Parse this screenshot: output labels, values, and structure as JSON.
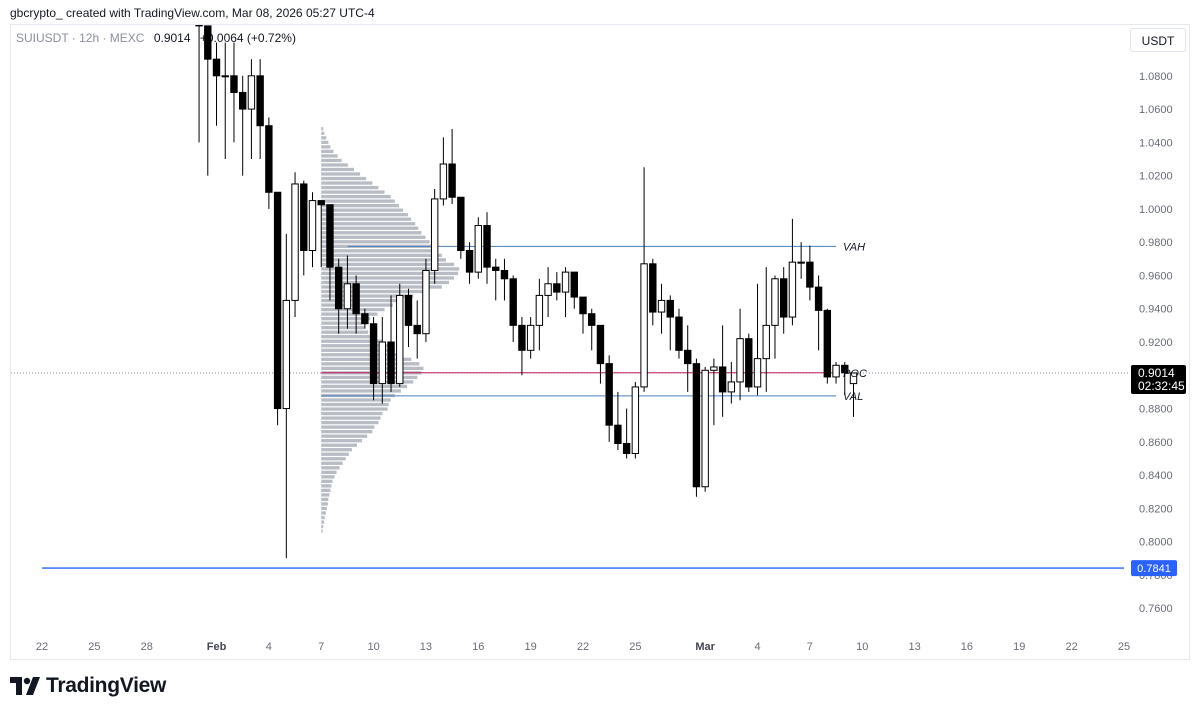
{
  "caption": "gbcrypto_ created with TradingView.com, Mar 08, 2026 05:27 UTC-4",
  "symbol": {
    "label": "SUIUSDT · 12h · MEXC",
    "price": "0.9014",
    "change": "+0.0064 (+0.72%)"
  },
  "currency": "USDT",
  "logo_text": "TradingView",
  "colors": {
    "bull": "#ffffff",
    "bear": "#000000",
    "line": "#2962ff",
    "level": "#4a7fc1",
    "poc": "#c2185b",
    "profile": "#b8bcc4"
  },
  "chart_data": {
    "type": "candlestick",
    "y_axis": {
      "ylim": [
        0.7475,
        1.0895
      ],
      "ticks": [
        "1.0800",
        "1.0600",
        "1.0400",
        "1.0200",
        "1.0000",
        "0.9800",
        "0.9600",
        "0.9400",
        "0.9200",
        "0.9000",
        "0.8800",
        "0.8600",
        "0.8400",
        "0.8200",
        "0.8000",
        "0.7800",
        "0.7600"
      ]
    },
    "x_axis": {
      "start": "2026-01-22",
      "end": "2026-03-25",
      "ticks": [
        {
          "date": "2026-01-22",
          "label": "22"
        },
        {
          "date": "2026-01-25",
          "label": "25"
        },
        {
          "date": "2026-01-28",
          "label": "28"
        },
        {
          "date": "2026-02-01",
          "label": "Feb"
        },
        {
          "date": "2026-02-04",
          "label": "4"
        },
        {
          "date": "2026-02-07",
          "label": "7"
        },
        {
          "date": "2026-02-10",
          "label": "10"
        },
        {
          "date": "2026-02-13",
          "label": "13"
        },
        {
          "date": "2026-02-16",
          "label": "16"
        },
        {
          "date": "2026-02-19",
          "label": "19"
        },
        {
          "date": "2026-02-22",
          "label": "22"
        },
        {
          "date": "2026-02-25",
          "label": "25"
        },
        {
          "date": "2026-03-01",
          "label": "Mar"
        },
        {
          "date": "2026-03-04",
          "label": "4"
        },
        {
          "date": "2026-03-07",
          "label": "7"
        },
        {
          "date": "2026-03-10",
          "label": "10"
        },
        {
          "date": "2026-03-13",
          "label": "13"
        },
        {
          "date": "2026-03-16",
          "label": "16"
        },
        {
          "date": "2026-03-19",
          "label": "19"
        },
        {
          "date": "2026-03-22",
          "label": "22"
        },
        {
          "date": "2026-03-25",
          "label": "25"
        }
      ]
    },
    "candles_start": "2026-01-31T00:00",
    "candle_interval_hours": 12,
    "candles": [
      [
        1.12,
        1.11,
        1.12,
        1.04
      ],
      [
        1.11,
        1.09,
        1.11,
        1.02
      ],
      [
        1.09,
        1.08,
        1.1,
        1.05
      ],
      [
        1.08,
        1.08,
        1.1,
        1.03
      ],
      [
        1.08,
        1.07,
        1.1,
        1.04
      ],
      [
        1.07,
        1.06,
        1.08,
        1.02
      ],
      [
        1.06,
        1.08,
        1.09,
        1.03
      ],
      [
        1.08,
        1.05,
        1.09,
        1.03
      ],
      [
        1.05,
        1.01,
        1.055,
        1.0
      ],
      [
        1.01,
        0.88,
        1.01,
        0.87
      ],
      [
        0.88,
        0.945,
        0.985,
        0.79
      ],
      [
        0.945,
        1.015,
        1.022,
        0.935
      ],
      [
        1.015,
        0.975,
        1.017,
        0.96
      ],
      [
        0.975,
        1.005,
        1.01,
        0.965
      ],
      [
        1.005,
        1.0025,
        1.005,
        0.965
      ],
      [
        1.0025,
        0.965,
        1.0025,
        0.945
      ],
      [
        0.965,
        0.94,
        0.97,
        0.925
      ],
      [
        0.94,
        0.955,
        0.972,
        0.928
      ],
      [
        0.955,
        0.937,
        0.96,
        0.925
      ],
      [
        0.937,
        0.931,
        0.94,
        0.928
      ],
      [
        0.931,
        0.895,
        0.935,
        0.885
      ],
      [
        0.895,
        0.92,
        0.935,
        0.883
      ],
      [
        0.92,
        0.895,
        0.948,
        0.89
      ],
      [
        0.895,
        0.948,
        0.955,
        0.893
      ],
      [
        0.948,
        0.93,
        0.952,
        0.917
      ],
      [
        0.93,
        0.925,
        0.945,
        0.91
      ],
      [
        0.925,
        0.963,
        0.97,
        0.92
      ],
      [
        0.963,
        1.006,
        1.012,
        0.955
      ],
      [
        1.006,
        1.027,
        1.043,
        1.002
      ],
      [
        1.027,
        1.007,
        1.048,
        1.003
      ],
      [
        1.007,
        0.975,
        1.007,
        0.97
      ],
      [
        0.975,
        0.962,
        0.98,
        0.955
      ],
      [
        0.962,
        0.99,
        0.995,
        0.958
      ],
      [
        0.99,
        0.965,
        0.998,
        0.955
      ],
      [
        0.965,
        0.963,
        0.97,
        0.945
      ],
      [
        0.963,
        0.958,
        0.97,
        0.945
      ],
      [
        0.958,
        0.93,
        0.96,
        0.92
      ],
      [
        0.93,
        0.915,
        0.935,
        0.9
      ],
      [
        0.915,
        0.93,
        0.935,
        0.91
      ],
      [
        0.93,
        0.948,
        0.958,
        0.915
      ],
      [
        0.948,
        0.955,
        0.965,
        0.935
      ],
      [
        0.955,
        0.95,
        0.962,
        0.945
      ],
      [
        0.95,
        0.962,
        0.965,
        0.935
      ],
      [
        0.962,
        0.947,
        0.962,
        0.94
      ],
      [
        0.947,
        0.937,
        0.947,
        0.925
      ],
      [
        0.937,
        0.93,
        0.94,
        0.915
      ],
      [
        0.93,
        0.907,
        0.93,
        0.895
      ],
      [
        0.907,
        0.87,
        0.912,
        0.86
      ],
      [
        0.87,
        0.859,
        0.89,
        0.855
      ],
      [
        0.859,
        0.853,
        0.88,
        0.85
      ],
      [
        0.853,
        0.893,
        0.896,
        0.85
      ],
      [
        0.893,
        0.967,
        1.025,
        0.89
      ],
      [
        0.967,
        0.938,
        0.97,
        0.93
      ],
      [
        0.938,
        0.945,
        0.955,
        0.925
      ],
      [
        0.945,
        0.935,
        0.948,
        0.915
      ],
      [
        0.935,
        0.915,
        0.94,
        0.91
      ],
      [
        0.915,
        0.907,
        0.93,
        0.89
      ],
      [
        0.907,
        0.833,
        0.91,
        0.827
      ],
      [
        0.833,
        0.903,
        0.905,
        0.83
      ],
      [
        0.903,
        0.905,
        0.91,
        0.87
      ],
      [
        0.905,
        0.89,
        0.93,
        0.875
      ],
      [
        0.89,
        0.896,
        0.908,
        0.883
      ],
      [
        0.896,
        0.922,
        0.94,
        0.885
      ],
      [
        0.922,
        0.893,
        0.925,
        0.89
      ],
      [
        0.893,
        0.91,
        0.955,
        0.888
      ],
      [
        0.91,
        0.93,
        0.965,
        0.89
      ],
      [
        0.93,
        0.958,
        0.96,
        0.91
      ],
      [
        0.958,
        0.935,
        0.965,
        0.925
      ],
      [
        0.935,
        0.968,
        0.994,
        0.93
      ],
      [
        0.968,
        0.968,
        0.98,
        0.958
      ],
      [
        0.968,
        0.953,
        0.978,
        0.945
      ],
      [
        0.953,
        0.939,
        0.96,
        0.915
      ],
      [
        0.939,
        0.899,
        0.94,
        0.895
      ],
      [
        0.899,
        0.906,
        0.908,
        0.895
      ],
      [
        0.906,
        0.9015,
        0.908,
        0.888
      ],
      [
        0.895,
        0.9014,
        0.9,
        0.875
      ]
    ],
    "levels": [
      {
        "label": "VAH",
        "value": 0.9775,
        "start": "2026-02-08T12:00",
        "end": "2026-03-08T12:00"
      },
      {
        "label": "POC",
        "value": 0.9015,
        "start": "2026-02-07T00:00",
        "end": "2026-03-08T12:00"
      },
      {
        "label": "VAL",
        "value": 0.8876,
        "start": "2026-02-07T00:00",
        "end": "2026-03-08T12:00"
      },
      {
        "label": "0.7841",
        "value": 0.7841,
        "start": "2026-01-22",
        "end": "2026-03-25"
      }
    ],
    "current_price": {
      "value": 0.9014,
      "label": "0.9014",
      "countdown": "02:32:45"
    },
    "volume_profile": {
      "start": "2026-02-07T00:00",
      "y_range": [
        0.805,
        1.0495
      ],
      "rows": [
        0.014,
        0.02,
        0.028,
        0.035,
        0.045,
        0.055,
        0.065,
        0.07,
        0.08,
        0.09,
        0.1,
        0.11,
        0.13,
        0.15,
        0.18,
        0.21,
        0.24,
        0.27,
        0.3,
        0.35,
        0.4,
        0.45,
        0.5,
        0.52,
        0.56,
        0.58,
        0.6,
        0.65,
        0.66,
        0.68,
        0.72,
        0.78,
        0.84,
        0.9,
        0.94,
        0.98,
        1.0,
        0.96,
        0.88,
        0.8,
        0.72,
        0.66,
        0.6,
        0.52,
        0.46,
        0.42,
        0.4,
        0.48,
        0.55,
        0.62,
        0.7,
        0.8,
        0.9,
        1.0,
        1.18,
        1.25,
        1.3,
        1.34,
        1.35,
        1.3,
        1.22,
        1.18,
        1.14,
        1.1,
        1.06,
        1.02,
        0.98,
        0.95,
        0.92,
        0.88,
        0.85,
        0.8,
        0.76,
        0.72,
        0.68,
        0.62,
        0.56,
        0.5,
        0.44,
        0.38,
        0.32,
        0.26,
        0.2,
        0.16,
        0.12,
        0.09,
        0.07,
        0.05,
        0.03,
        0.02
      ]
    }
  }
}
